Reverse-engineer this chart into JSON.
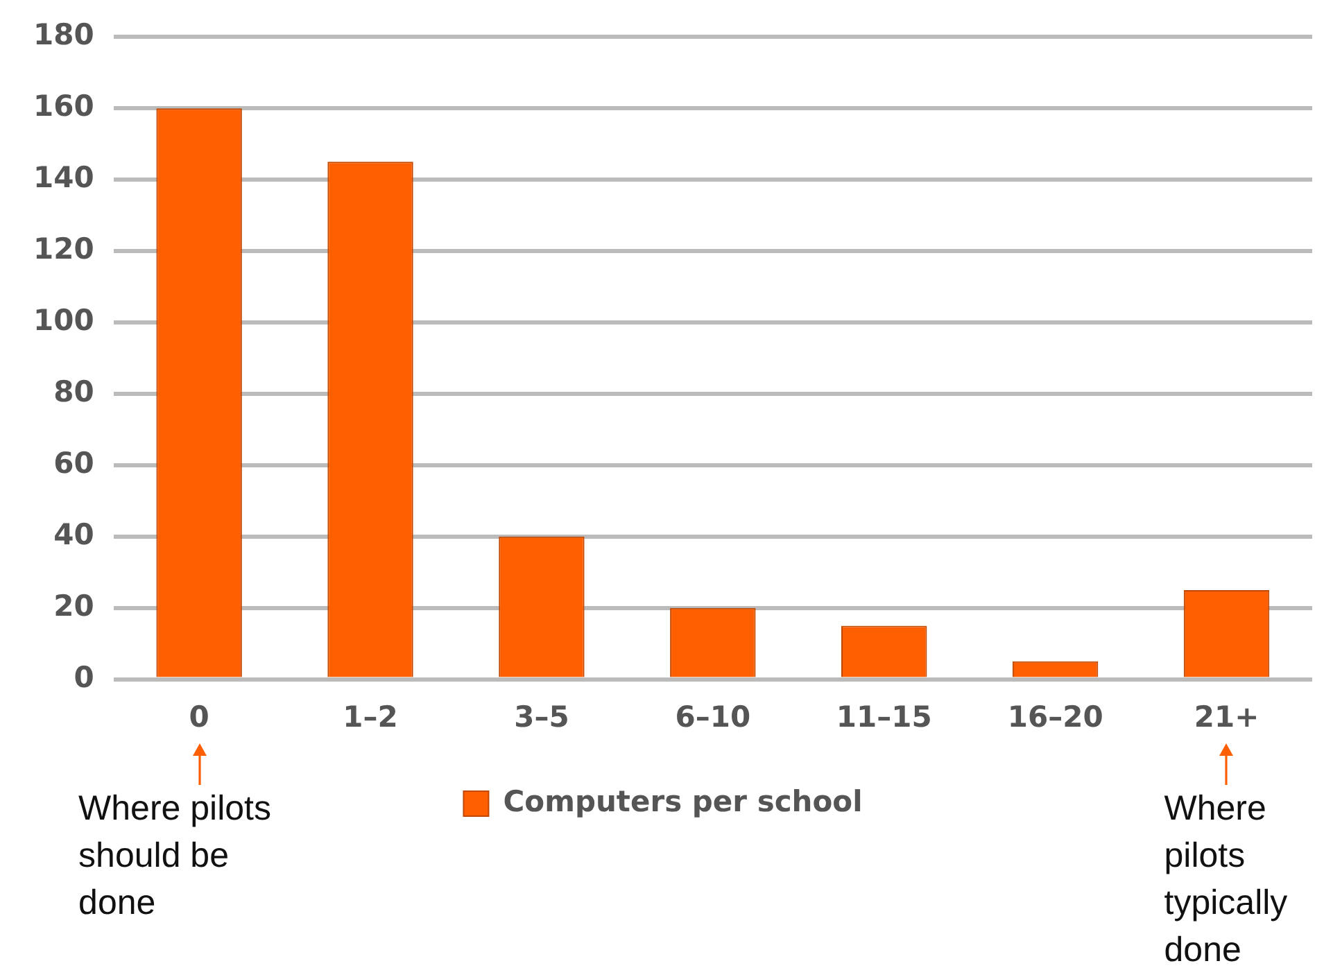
{
  "chart_data": {
    "type": "bar",
    "categories": [
      "0",
      "1–2",
      "3–5",
      "6–10",
      "11–15",
      "16–20",
      "21+"
    ],
    "series": [
      {
        "name": "Computers per school",
        "color": "#ff5f00",
        "values": [
          160,
          145,
          40,
          20,
          15,
          5,
          25
        ]
      }
    ],
    "ylim": [
      0,
      180
    ],
    "yticks": [
      0,
      20,
      40,
      60,
      80,
      100,
      120,
      140,
      160,
      180
    ],
    "grid": "y",
    "legend": "bottom",
    "annotations": [
      "Where pilots should be done",
      "Where pilots typically done"
    ]
  }
}
